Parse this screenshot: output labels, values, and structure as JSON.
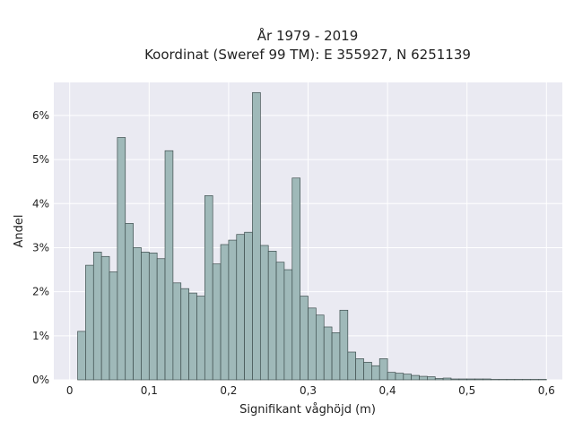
{
  "title_line1": "År 1979 - 2019",
  "title_line2": "Koordinat (Sweref 99 TM): E 355927, N 6251139",
  "colors": {
    "background": "#ffffff",
    "plot_bg": "#eaeaf2",
    "grid": "#ffffff",
    "bar_fill": "#9fb9b9",
    "bar_edge": "#3f4f4f"
  },
  "chart_data": {
    "type": "bar",
    "xlabel": "Signifikant våghöjd (m)",
    "ylabel": "Andel",
    "xlim": [
      -0.02,
      0.62
    ],
    "ylim": [
      0,
      6.75
    ],
    "x_ticks": [
      0,
      0.1,
      0.2,
      0.3,
      0.4,
      0.5,
      0.6
    ],
    "x_tick_labels": [
      "0",
      "0,1",
      "0,2",
      "0,3",
      "0,4",
      "0,5",
      "0,6"
    ],
    "y_ticks": [
      0,
      1,
      2,
      3,
      4,
      5,
      6
    ],
    "y_tick_labels": [
      "0%",
      "1%",
      "2%",
      "3%",
      "4%",
      "5%",
      "6%"
    ],
    "bin_width": 0.01,
    "bin_starts": [
      0.01,
      0.02,
      0.03,
      0.04,
      0.05,
      0.06,
      0.07,
      0.08,
      0.09,
      0.1,
      0.11,
      0.12,
      0.13,
      0.14,
      0.15,
      0.16,
      0.17,
      0.18,
      0.19,
      0.2,
      0.21,
      0.22,
      0.23,
      0.24,
      0.25,
      0.26,
      0.27,
      0.28,
      0.29,
      0.3,
      0.31,
      0.32,
      0.33,
      0.34,
      0.35,
      0.36,
      0.37,
      0.38,
      0.39,
      0.4,
      0.41,
      0.42,
      0.43,
      0.44,
      0.45,
      0.46,
      0.47,
      0.48,
      0.49,
      0.5,
      0.51,
      0.52,
      0.53,
      0.54,
      0.55,
      0.56,
      0.57,
      0.58,
      0.59
    ],
    "values": [
      1.1,
      2.6,
      2.9,
      2.8,
      2.45,
      5.5,
      3.55,
      3.0,
      2.9,
      2.88,
      2.75,
      5.2,
      2.2,
      2.07,
      1.97,
      1.9,
      4.18,
      2.63,
      3.07,
      3.17,
      3.3,
      3.35,
      6.52,
      3.05,
      2.92,
      2.67,
      2.5,
      4.58,
      1.9,
      1.63,
      1.47,
      1.2,
      1.07,
      1.58,
      0.63,
      0.48,
      0.4,
      0.32,
      0.48,
      0.17,
      0.15,
      0.13,
      0.1,
      0.08,
      0.07,
      0.03,
      0.04,
      0.02,
      0.02,
      0.02,
      0.02,
      0.02,
      0.01,
      0.01,
      0.01,
      0.01,
      0.01,
      0.01,
      0.01
    ]
  }
}
